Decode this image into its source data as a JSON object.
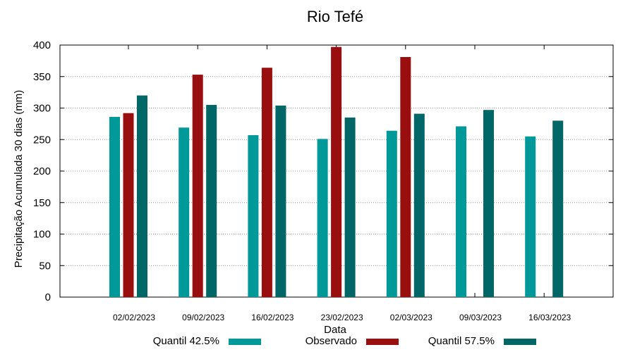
{
  "chart_data": {
    "type": "bar",
    "title": "Rio Tefé",
    "xlabel": "Data",
    "ylabel": "Precipitação Acumulada 30 dias (mm)",
    "ylim": [
      0,
      400
    ],
    "yticks": [
      0,
      50,
      100,
      150,
      200,
      250,
      300,
      350,
      400
    ],
    "grid": true,
    "legend_position": "bottom",
    "categories": [
      "02/02/2023",
      "09/02/2023",
      "16/02/2023",
      "23/02/2023",
      "02/03/2023",
      "09/03/2023",
      "16/03/2023"
    ],
    "series": [
      {
        "name": "Quantil 42.5%",
        "color": "#009999",
        "values": [
          286,
          269,
          257,
          251,
          264,
          271,
          255
        ]
      },
      {
        "name": "Observado",
        "color": "#990f0f",
        "values": [
          292,
          353,
          364,
          397,
          381,
          null,
          null
        ]
      },
      {
        "name": "Quantil 57.5%",
        "color": "#006666",
        "values": [
          320,
          305,
          304,
          285,
          291,
          297,
          280
        ]
      }
    ]
  }
}
